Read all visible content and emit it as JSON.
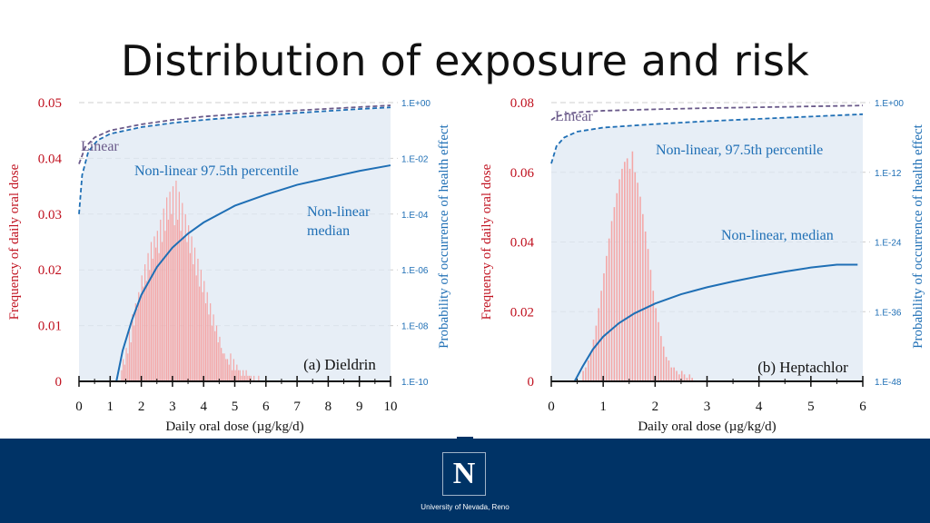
{
  "slide": {
    "title": "Distribution of exposure and risk"
  },
  "footer": {
    "university": "University of Nevada, Reno",
    "logo_letter": "N"
  },
  "colors": {
    "frequency": "#c0111f",
    "probability": "#1f6fb5",
    "linear": "#6a5a8a",
    "histogram": "#f4a6a6",
    "band": "#dfe8f3",
    "footer": "#003366"
  },
  "chart_data": [
    {
      "type": "bar+line",
      "panel_label": "(a) Dieldrin",
      "xlabel": "Daily oral dose (µg/kg/d)",
      "ylabel_left": "Frequency of daily oral dose",
      "ylabel_right": "Probability of occurrence of health effect",
      "xlim": [
        0,
        10
      ],
      "x_ticks": [
        "0",
        "1",
        "2",
        "3",
        "4",
        "5",
        "6",
        "7",
        "8",
        "9",
        "10"
      ],
      "ylim_left": [
        0,
        0.05
      ],
      "y_ticks_left": [
        "0",
        "0.01",
        "0.02",
        "0.03",
        "0.04",
        "0.05"
      ],
      "y_ticks_right": [
        "1.E-10",
        "1.E-08",
        "1.E-06",
        "1.E-04",
        "1.E-02",
        "1.E+00"
      ],
      "right_axis_log_exponents": [
        -10,
        0
      ],
      "grid": "horizontal dashed",
      "annotations": [
        "Linear",
        "Non-linear 97.5th percentile",
        "Non-linear",
        "median"
      ],
      "histogram": {
        "bin_width": 0.05,
        "x_start": 1.35,
        "values": [
          0.002,
          0.004,
          0.003,
          0.006,
          0.005,
          0.009,
          0.007,
          0.012,
          0.01,
          0.014,
          0.013,
          0.016,
          0.015,
          0.019,
          0.017,
          0.021,
          0.018,
          0.023,
          0.02,
          0.025,
          0.022,
          0.026,
          0.024,
          0.027,
          0.023,
          0.029,
          0.025,
          0.031,
          0.027,
          0.033,
          0.029,
          0.034,
          0.03,
          0.035,
          0.028,
          0.036,
          0.029,
          0.034,
          0.027,
          0.032,
          0.026,
          0.03,
          0.025,
          0.028,
          0.023,
          0.026,
          0.021,
          0.024,
          0.019,
          0.022,
          0.017,
          0.02,
          0.016,
          0.018,
          0.014,
          0.016,
          0.012,
          0.014,
          0.01,
          0.012,
          0.009,
          0.01,
          0.007,
          0.008,
          0.006,
          0.005,
          0.005,
          0.004,
          0.004,
          0.003,
          0.005,
          0.002,
          0.004,
          0.002,
          0.003,
          0.002,
          0.002,
          0.001,
          0.002,
          0.001,
          0.002,
          0.001,
          0.001,
          0.001,
          0.0,
          0.001,
          0.0,
          0.0,
          0.001
        ]
      },
      "series": [
        {
          "name": "Linear",
          "axis": "right",
          "style": "dashed",
          "x": [
            0,
            0.2,
            0.5,
            1,
            2,
            3,
            4,
            5,
            6,
            7,
            8,
            9,
            10
          ],
          "log10_p": [
            -2.2,
            -1.6,
            -1.25,
            -1.0,
            -0.78,
            -0.62,
            -0.5,
            -0.42,
            -0.35,
            -0.28,
            -0.22,
            -0.16,
            -0.1
          ]
        },
        {
          "name": "Non-linear 97.5th percentile",
          "axis": "right",
          "style": "dashed",
          "x": [
            0,
            0.1,
            0.3,
            0.6,
            1,
            2,
            3,
            4,
            5,
            6,
            7,
            8,
            9,
            10
          ],
          "log10_p": [
            -4.0,
            -2.6,
            -1.75,
            -1.35,
            -1.12,
            -0.88,
            -0.73,
            -0.62,
            -0.53,
            -0.45,
            -0.37,
            -0.3,
            -0.23,
            -0.17
          ]
        },
        {
          "name": "Non-linear median",
          "axis": "right",
          "style": "solid",
          "x": [
            1.2,
            1.4,
            1.7,
            2,
            2.5,
            3,
            3.5,
            4,
            5,
            6,
            7,
            8,
            9,
            10
          ],
          "log10_p": [
            -10,
            -8.9,
            -7.8,
            -6.9,
            -5.9,
            -5.2,
            -4.7,
            -4.3,
            -3.7,
            -3.3,
            -2.95,
            -2.7,
            -2.45,
            -2.25
          ]
        }
      ]
    },
    {
      "type": "bar+line",
      "panel_label": "(b) Heptachlor",
      "xlabel": "Daily oral dose (µg/kg/d)",
      "ylabel_left": "Frequency of daily oral dose",
      "ylabel_right": "Probability of occurrence of health effect",
      "xlim": [
        0,
        6
      ],
      "x_ticks": [
        "0",
        "1",
        "2",
        "3",
        "4",
        "5",
        "6"
      ],
      "ylim_left": [
        0,
        0.08
      ],
      "y_ticks_left": [
        "0",
        "0.02",
        "0.04",
        "0.06",
        "0.08"
      ],
      "y_ticks_right": [
        "1.E-48",
        "1.E-36",
        "1.E-24",
        "1.E-12",
        "1.E+00"
      ],
      "right_axis_log_exponents": [
        -48,
        0
      ],
      "grid": "horizontal dashed",
      "annotations": [
        "Linear",
        "Non-linear, 97.5th percentile",
        "Non-linear, median"
      ],
      "histogram": {
        "bin_width": 0.05,
        "x_start": 0.6,
        "values": [
          0.003,
          0.004,
          0.006,
          0.008,
          0.012,
          0.016,
          0.021,
          0.026,
          0.031,
          0.036,
          0.041,
          0.046,
          0.05,
          0.054,
          0.058,
          0.061,
          0.063,
          0.064,
          0.061,
          0.066,
          0.06,
          0.057,
          0.053,
          0.048,
          0.043,
          0.038,
          0.032,
          0.026,
          0.021,
          0.017,
          0.013,
          0.01,
          0.007,
          0.006,
          0.004,
          0.004,
          0.003,
          0.002,
          0.003,
          0.002,
          0.001,
          0.002,
          0.001
        ]
      },
      "series": [
        {
          "name": "Linear",
          "axis": "right",
          "style": "dashed",
          "x": [
            0,
            0.1,
            0.3,
            0.6,
            1,
            2,
            3,
            4,
            5,
            6
          ],
          "log10_p": [
            -3.0,
            -2.4,
            -1.9,
            -1.6,
            -1.4,
            -1.15,
            -0.95,
            -0.8,
            -0.65,
            -0.5
          ]
        },
        {
          "name": "Non-linear, 97.5th percentile",
          "axis": "right",
          "style": "dashed",
          "x": [
            0,
            0.1,
            0.25,
            0.5,
            1,
            2,
            3,
            4,
            5,
            6
          ],
          "log10_p": [
            -10.5,
            -7.5,
            -6.0,
            -5.0,
            -4.3,
            -3.7,
            -3.2,
            -2.8,
            -2.4,
            -2.0
          ]
        },
        {
          "name": "Non-linear, median",
          "axis": "right",
          "style": "solid",
          "x": [
            0.45,
            0.6,
            0.8,
            1,
            1.3,
            1.6,
            2,
            2.5,
            3,
            3.5,
            4,
            4.5,
            5,
            5.5,
            5.9
          ],
          "log10_p": [
            -48,
            -45.5,
            -42.5,
            -40.3,
            -38.0,
            -36.3,
            -34.6,
            -33.0,
            -31.8,
            -30.8,
            -29.9,
            -29.1,
            -28.4,
            -27.9,
            -27.9
          ]
        }
      ]
    }
  ]
}
